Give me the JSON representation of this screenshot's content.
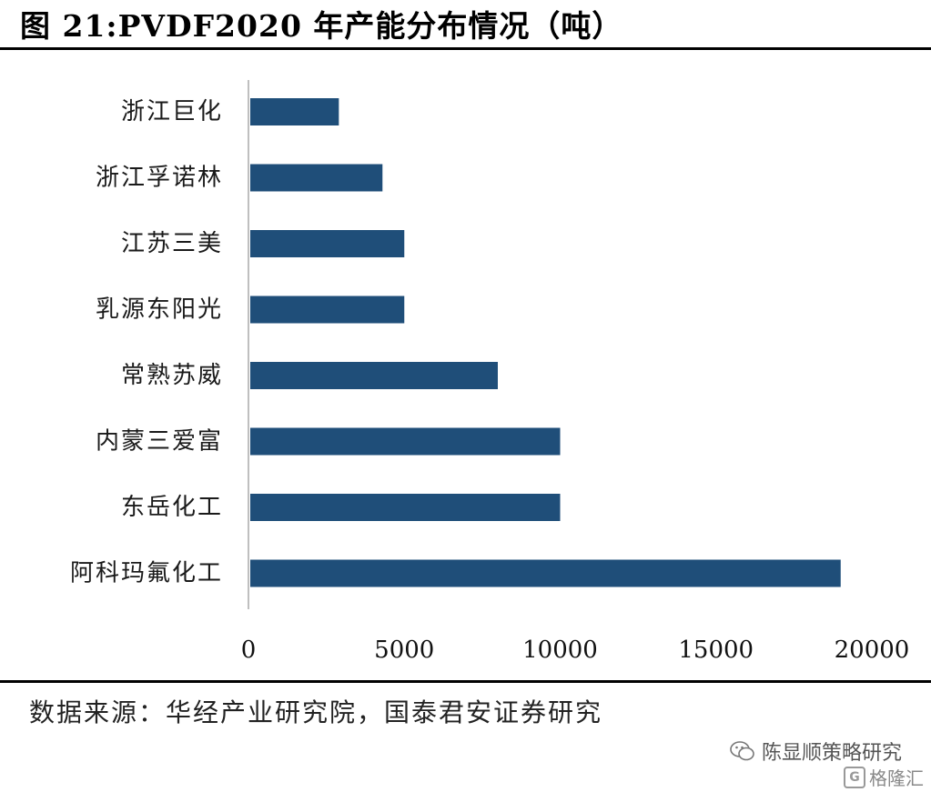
{
  "header": {
    "title": "图 21:PVDF2020 年产能分布情况（吨）"
  },
  "chart_data": {
    "type": "bar",
    "orientation": "horizontal",
    "categories": [
      "浙江巨化",
      "浙江孚诺林",
      "江苏三美",
      "乳源东阳光",
      "常熟苏威",
      "内蒙三爱富",
      "东岳化工",
      "阿科玛氟化工"
    ],
    "values": [
      2900,
      4300,
      5000,
      5000,
      8000,
      10000,
      10000,
      19000
    ],
    "xlim": [
      0,
      20000
    ],
    "xticks": [
      "0",
      "5000",
      "10000",
      "15000",
      "20000"
    ],
    "bar_color": "#1f4e79",
    "grid": false,
    "legend": "none"
  },
  "footer": {
    "source": "数据来源：华经产业研究院，国泰君安证券研究",
    "watermark": "陈显顺策略研究",
    "logo_text": "格隆汇",
    "logo_mark": "G"
  }
}
